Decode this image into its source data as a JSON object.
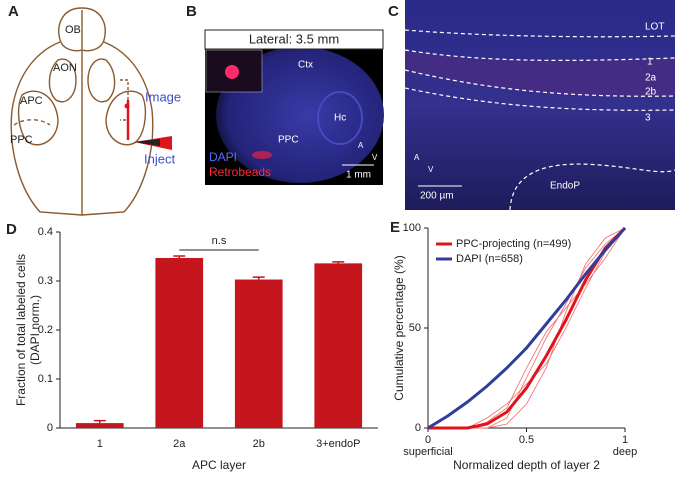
{
  "panels": {
    "a": {
      "letter": "A",
      "labels": [
        "OB",
        "AON",
        "APC",
        "PPC",
        "Image",
        "Inject"
      ]
    },
    "b": {
      "letter": "B",
      "title": "Lateral: 3.5 mm",
      "labels": [
        "Ctx",
        "Hc",
        "PPC",
        "DAPI",
        "Retrobeads",
        "1 mm",
        "A",
        "V"
      ]
    },
    "c": {
      "letter": "C",
      "labels": [
        "LOT",
        "1",
        "2a",
        "2b",
        "3",
        "EndoP",
        "200 µm",
        "A",
        "V"
      ]
    },
    "d": {
      "letter": "D"
    },
    "e": {
      "letter": "E"
    }
  },
  "chart_data": [
    {
      "type": "bar",
      "ylabel": [
        "Fraction of total labeled cells",
        "(DAPI norm.)"
      ],
      "xlabel": "APC layer",
      "categories": [
        "1",
        "2a",
        "2b",
        "3+endoP"
      ],
      "values": [
        0.01,
        0.347,
        0.303,
        0.336
      ],
      "errors": [
        0.005,
        0.004,
        0.005,
        0.003
      ],
      "color": "#c4161c",
      "ylim": [
        0,
        0.4
      ],
      "yticks": [
        0,
        0.1,
        0.2,
        0.3,
        0.4
      ],
      "annotation": "n.s"
    },
    {
      "type": "line",
      "xlabel": "Normalized depth of layer 2",
      "ylabel": "Cumulative  percentage (%)",
      "x": [
        0,
        0.1,
        0.2,
        0.3,
        0.4,
        0.5,
        0.6,
        0.7,
        0.8,
        0.9,
        1
      ],
      "series": [
        {
          "color": "#f26a6a",
          "line_width": 0.8,
          "values": [
            0,
            0,
            0,
            0,
            5,
            25,
            45,
            62,
            80,
            92,
            100
          ]
        },
        {
          "color": "#f26a6a",
          "line_width": 0.8,
          "values": [
            0,
            0,
            0,
            5,
            12,
            22,
            32,
            50,
            70,
            88,
            100
          ]
        },
        {
          "color": "#f26a6a",
          "line_width": 0.8,
          "values": [
            0,
            0,
            0,
            0,
            2,
            12,
            30,
            58,
            82,
            95,
            100
          ]
        },
        {
          "color": "#f26a6a",
          "line_width": 0.8,
          "values": [
            0,
            0,
            0,
            3,
            10,
            30,
            48,
            60,
            72,
            85,
            100
          ]
        },
        {
          "name": "PPC-projecting (n=499)",
          "color": "#e0141b",
          "line_width": 3,
          "values": [
            0,
            0,
            0,
            2,
            8,
            20,
            36,
            54,
            74,
            90,
            100
          ]
        },
        {
          "name": "DAPI (n=658)",
          "color": "#2e3e9a",
          "line_width": 3,
          "values": [
            0,
            6,
            13,
            21,
            30,
            40,
            52,
            64,
            77,
            89,
            100
          ]
        }
      ],
      "xlim": [
        0,
        1
      ],
      "xticks": [
        0,
        0.5,
        1
      ],
      "ylim": [
        0,
        100
      ],
      "yticks": [
        0,
        50,
        100
      ],
      "annotations": [
        "superficial",
        "deep"
      ],
      "legend": "upper left"
    }
  ]
}
